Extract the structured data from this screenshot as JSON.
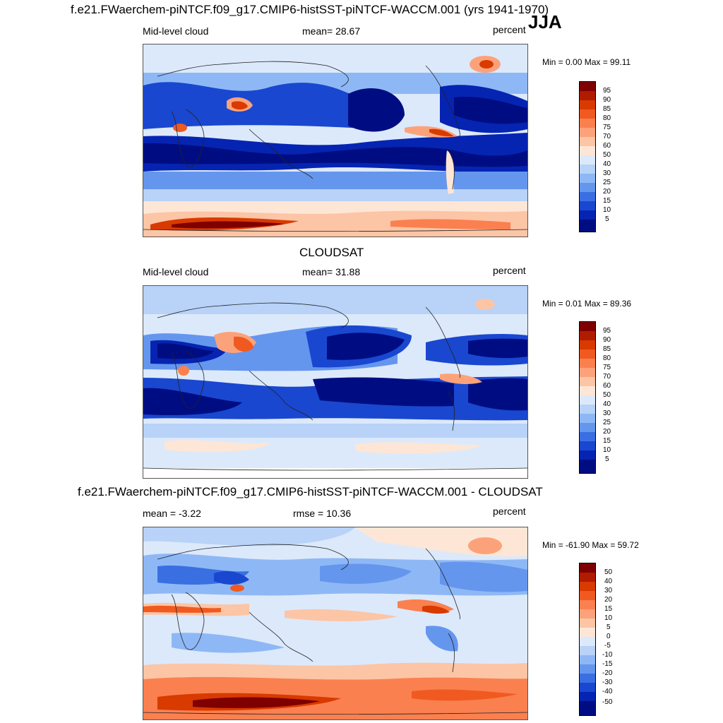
{
  "header": {
    "title": "f.e21.FWaerchem-piNTCF.f09_g17.CMIP6-histSST-piNTCF-WACCM.001 (yrs 1941-1970)",
    "season": "JJA"
  },
  "panels": [
    {
      "id": "model",
      "title": "",
      "left_label": "Mid-level cloud",
      "center_label": "mean=  28.67",
      "units": "percent",
      "minmax": "Min =   0.00 Max =  99.11",
      "colorbar": {
        "labels": [
          "95",
          "90",
          "85",
          "80",
          "75",
          "70",
          "60",
          "50",
          "40",
          "30",
          "25",
          "20",
          "15",
          "10",
          "5"
        ],
        "colors": [
          "#7f0000",
          "#b01c00",
          "#d83a00",
          "#f05a20",
          "#fa8050",
          "#fca27a",
          "#fcc5a5",
          "#fde6d6",
          "#dce9fb",
          "#b8d2f8",
          "#8eb8f5",
          "#6596ee",
          "#3a6fe2",
          "#1a47cf",
          "#0624b2",
          "#000d82"
        ]
      }
    },
    {
      "id": "obs",
      "title": "CLOUDSAT",
      "left_label": "Mid-level cloud",
      "center_label": "mean=  31.88",
      "units": "percent",
      "minmax": "Min =   0.01 Max =  89.36",
      "colorbar": {
        "labels": [
          "95",
          "90",
          "85",
          "80",
          "75",
          "70",
          "60",
          "50",
          "40",
          "30",
          "25",
          "20",
          "15",
          "10",
          "5"
        ],
        "colors": [
          "#7f0000",
          "#b01c00",
          "#d83a00",
          "#f05a20",
          "#fa8050",
          "#fca27a",
          "#fcc5a5",
          "#fde6d6",
          "#dce9fb",
          "#b8d2f8",
          "#8eb8f5",
          "#6596ee",
          "#3a6fe2",
          "#1a47cf",
          "#0624b2",
          "#000d82"
        ]
      }
    },
    {
      "id": "diff",
      "title": "f.e21.FWaerchem-piNTCF.f09_g17.CMIP6-histSST-piNTCF-WACCM.001 - CLOUDSAT",
      "left_label": "mean =  -3.22",
      "center_label": "rmse =  10.36",
      "units": "percent",
      "minmax": "Min = -61.90 Max =  59.72",
      "colorbar": {
        "labels": [
          "50",
          "40",
          "30",
          "20",
          "15",
          "10",
          "5",
          "0",
          "-5",
          "-10",
          "-15",
          "-20",
          "-30",
          "-40",
          "-50"
        ],
        "colors": [
          "#7f0000",
          "#b01c00",
          "#d83a00",
          "#f05a20",
          "#fa8050",
          "#fca27a",
          "#fcc5a5",
          "#fde6d6",
          "#dce9fb",
          "#b8d2f8",
          "#8eb8f5",
          "#6596ee",
          "#3a6fe2",
          "#1a47cf",
          "#0624b2",
          "#000d82"
        ]
      }
    }
  ],
  "chart_data": [
    {
      "type": "heatmap",
      "title": "Mid-level cloud (model, JJA)",
      "units": "percent",
      "mean": 28.67,
      "min": 0.0,
      "max": 99.11,
      "levels": [
        5,
        10,
        15,
        20,
        25,
        30,
        40,
        50,
        60,
        70,
        75,
        80,
        85,
        90,
        95
      ]
    },
    {
      "type": "heatmap",
      "title": "Mid-level cloud (CLOUDSAT, JJA)",
      "units": "percent",
      "mean": 31.88,
      "min": 0.01,
      "max": 89.36,
      "levels": [
        5,
        10,
        15,
        20,
        25,
        30,
        40,
        50,
        60,
        70,
        75,
        80,
        85,
        90,
        95
      ]
    },
    {
      "type": "heatmap",
      "title": "Model - CLOUDSAT difference",
      "units": "percent",
      "mean": -3.22,
      "rmse": 10.36,
      "min": -61.9,
      "max": 59.72,
      "levels": [
        -50,
        -40,
        -30,
        -20,
        -15,
        -10,
        -5,
        0,
        5,
        10,
        15,
        20,
        30,
        40,
        50
      ]
    }
  ]
}
